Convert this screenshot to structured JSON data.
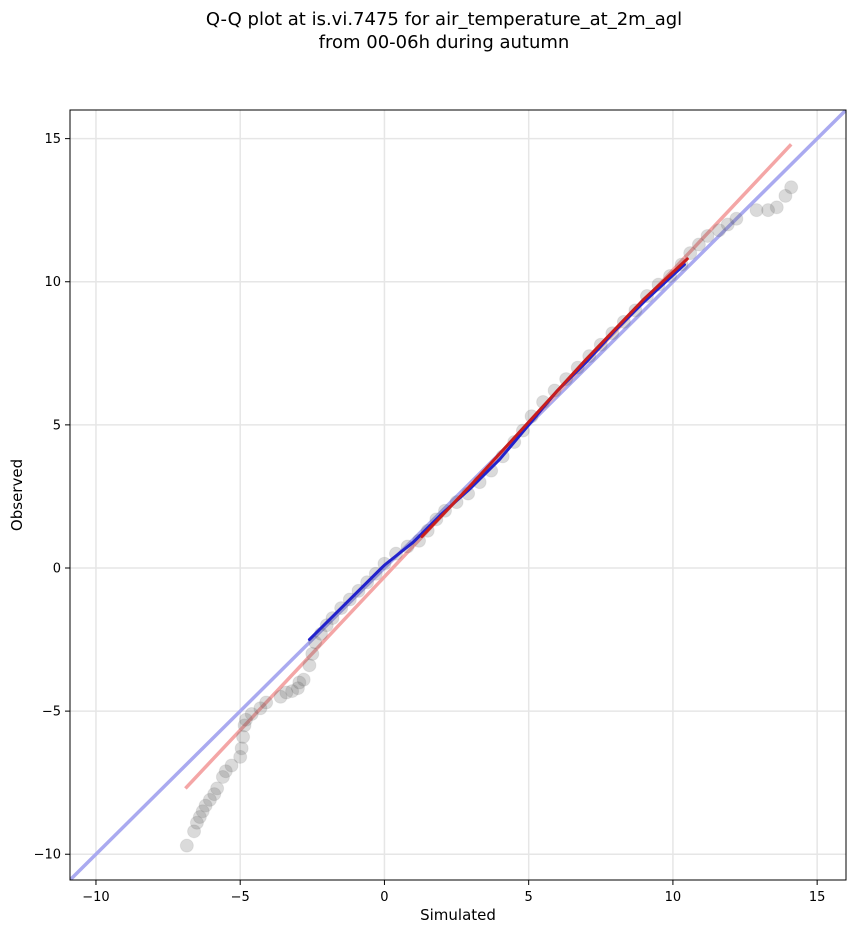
{
  "chart_data": {
    "type": "scatter",
    "title_lines": [
      "Q-Q plot at is.vi.7475 for air_temperature_at_2m_agl",
      "from 00-06h during autumn"
    ],
    "xlabel": "Simulated",
    "ylabel": "Observed",
    "xlim": [
      -10.9,
      16.0
    ],
    "ylim": [
      -10.9,
      16.0
    ],
    "xticks": [
      -10,
      -5,
      0,
      5,
      10,
      15
    ],
    "yticks": [
      -10,
      -5,
      0,
      5,
      10,
      15
    ],
    "xtick_labels": [
      "−10",
      "−5",
      "0",
      "5",
      "10",
      "15"
    ],
    "ytick_labels": [
      "−10",
      "−5",
      "0",
      "5",
      "10",
      "15"
    ],
    "grid": true,
    "point_color": "#555555",
    "identity_line_color": "#aaaaf0",
    "fit_line_color": "#f4a6a6",
    "segment_colors": {
      "blue": "#2222cc",
      "red": "#c81e1e"
    },
    "identity_line": {
      "x": [
        -10.9,
        16.0
      ],
      "y": [
        -10.9,
        16.0
      ]
    },
    "fit_line": {
      "x": [
        -6.9,
        14.1
      ],
      "y": [
        -7.7,
        14.8
      ]
    },
    "series": [
      {
        "type": "scatter",
        "points": [
          [
            -6.85,
            -9.7
          ],
          [
            -6.6,
            -9.2
          ],
          [
            -6.5,
            -8.9
          ],
          [
            -6.4,
            -8.7
          ],
          [
            -6.3,
            -8.5
          ],
          [
            -6.2,
            -8.3
          ],
          [
            -6.05,
            -8.1
          ],
          [
            -5.9,
            -7.9
          ],
          [
            -5.8,
            -7.7
          ],
          [
            -5.6,
            -7.3
          ],
          [
            -5.5,
            -7.1
          ],
          [
            -5.3,
            -6.9
          ],
          [
            -5.0,
            -6.6
          ],
          [
            -4.95,
            -6.3
          ],
          [
            -4.9,
            -5.9
          ],
          [
            -4.85,
            -5.5
          ],
          [
            -4.8,
            -5.3
          ],
          [
            -4.6,
            -5.1
          ],
          [
            -4.3,
            -4.9
          ],
          [
            -4.1,
            -4.7
          ],
          [
            -3.6,
            -4.5
          ],
          [
            -3.4,
            -4.35
          ],
          [
            -3.2,
            -4.3
          ],
          [
            -3.0,
            -4.2
          ],
          [
            -2.95,
            -4.0
          ],
          [
            -2.8,
            -3.9
          ],
          [
            -2.6,
            -3.4
          ],
          [
            -2.5,
            -3.0
          ],
          [
            -2.4,
            -2.6
          ],
          [
            -2.2,
            -2.3
          ],
          [
            -2.0,
            -2.0
          ],
          [
            -1.8,
            -1.75
          ],
          [
            -1.5,
            -1.4
          ],
          [
            -1.2,
            -1.1
          ],
          [
            -0.9,
            -0.8
          ],
          [
            -0.6,
            -0.5
          ],
          [
            -0.3,
            -0.2
          ],
          [
            0.0,
            0.15
          ],
          [
            0.4,
            0.5
          ],
          [
            0.8,
            0.75
          ],
          [
            1.2,
            0.95
          ],
          [
            1.5,
            1.3
          ],
          [
            1.8,
            1.7
          ],
          [
            2.1,
            2.0
          ],
          [
            2.5,
            2.3
          ],
          [
            2.9,
            2.6
          ],
          [
            3.3,
            3.0
          ],
          [
            3.7,
            3.4
          ],
          [
            4.1,
            3.9
          ],
          [
            4.5,
            4.4
          ],
          [
            4.8,
            4.8
          ],
          [
            5.1,
            5.3
          ],
          [
            5.5,
            5.8
          ],
          [
            5.9,
            6.2
          ],
          [
            6.3,
            6.6
          ],
          [
            6.7,
            7.0
          ],
          [
            7.1,
            7.4
          ],
          [
            7.5,
            7.8
          ],
          [
            7.9,
            8.2
          ],
          [
            8.3,
            8.6
          ],
          [
            8.7,
            9.0
          ],
          [
            9.1,
            9.5
          ],
          [
            9.5,
            9.9
          ],
          [
            9.9,
            10.2
          ],
          [
            10.3,
            10.6
          ],
          [
            10.6,
            11.0
          ],
          [
            10.9,
            11.3
          ],
          [
            11.2,
            11.6
          ],
          [
            11.6,
            11.8
          ],
          [
            11.9,
            12.0
          ],
          [
            12.2,
            12.2
          ],
          [
            12.9,
            12.5
          ],
          [
            13.3,
            12.5
          ],
          [
            13.6,
            12.6
          ],
          [
            13.9,
            13.0
          ],
          [
            14.1,
            13.3
          ]
        ]
      },
      {
        "type": "line",
        "color_key": "blue",
        "x": [
          -2.6,
          -1.5,
          0.0,
          1.0,
          2.0,
          3.0,
          4.0,
          5.0,
          6.0,
          7.0,
          8.0,
          9.0,
          10.4
        ],
        "y": [
          -2.5,
          -1.4,
          0.1,
          0.9,
          1.9,
          2.8,
          3.8,
          5.0,
          6.2,
          7.2,
          8.3,
          9.3,
          10.6
        ]
      },
      {
        "type": "line",
        "color_key": "red",
        "x": [
          1.3,
          3.0,
          5.0,
          7.0,
          9.0,
          10.5
        ],
        "y": [
          1.1,
          2.9,
          5.1,
          7.3,
          9.4,
          10.8
        ]
      }
    ]
  }
}
